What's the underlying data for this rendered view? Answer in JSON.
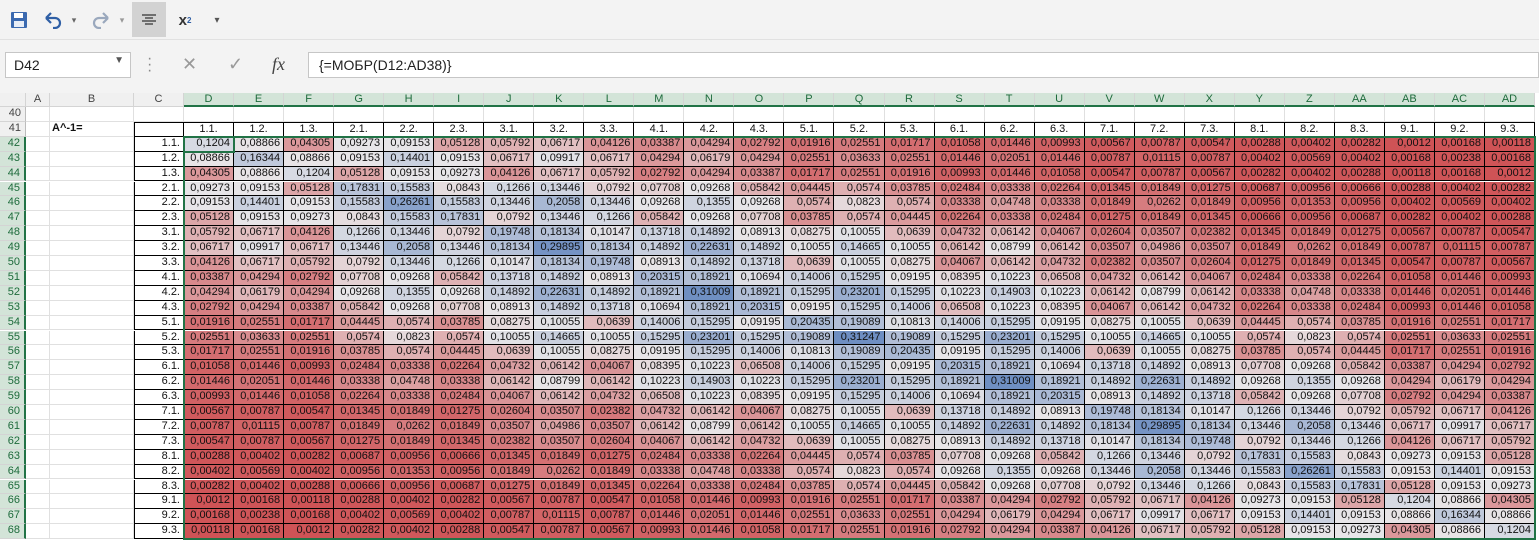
{
  "toolbar": {
    "items": [
      "save-icon",
      "undo-icon",
      "undo-dropdown-icon",
      "redo-icon",
      "redo-dropdown-icon",
      "align-center-icon",
      "subscript-icon",
      "customize-dropdown-icon"
    ],
    "subscript_glyph": "x",
    "subscript_sub": "2"
  },
  "namebox": "D42",
  "formula_icons": {
    "cancel": "✕",
    "enter": "✓",
    "fx": "fx"
  },
  "formula": "{=МОБР(D12:AD38)}",
  "columns": [
    "A",
    "B",
    "C",
    "D",
    "E",
    "F",
    "G",
    "H",
    "I",
    "J",
    "K",
    "L",
    "M",
    "N",
    "O",
    "P",
    "Q",
    "R",
    "S",
    "T",
    "U",
    "V",
    "W",
    "X",
    "Y",
    "Z",
    "AA",
    "AB",
    "AC",
    "AD"
  ],
  "rows": [
    "40",
    "41",
    "42",
    "43",
    "44",
    "45",
    "46",
    "47",
    "48",
    "49",
    "50",
    "51",
    "52",
    "53",
    "54",
    "55",
    "56",
    "57",
    "58",
    "59",
    "60",
    "61",
    "62",
    "63",
    "64",
    "65",
    "66",
    "67",
    "68"
  ],
  "matrix_label": "A^-1=",
  "labels": [
    "1.1.",
    "1.2.",
    "1.3.",
    "2.1.",
    "2.2.",
    "2.3.",
    "3.1.",
    "3.2.",
    "3.3.",
    "4.1.",
    "4.2.",
    "4.3.",
    "5.1.",
    "5.2.",
    "5.3.",
    "6.1.",
    "6.2.",
    "6.3.",
    "7.1.",
    "7.2.",
    "7.3.",
    "8.1.",
    "8.2.",
    "8.3.",
    "9.1.",
    "9.2.",
    "9.3."
  ],
  "heat_colors": {
    "low": "#cf5356",
    "mid": "#e8e6e8",
    "high": "#6e8ec2"
  },
  "matrix": [
    [
      "0,1204",
      "0,08866",
      "0,04305",
      "0,09273",
      "0,09153",
      "0,05128",
      "0,05792",
      "0,06717",
      "0,04126",
      "0,03387",
      "0,04294",
      "0,02792",
      "0,01916",
      "0,02551",
      "0,01717",
      "0,01058",
      "0,01446",
      "0,00993",
      "0,00567",
      "0,00787",
      "0,00547",
      "0,00288",
      "0,00402",
      "0,00282",
      "0,0012",
      "0,00168",
      "0,00118"
    ],
    [
      "0,08866",
      "0,16344",
      "0,08866",
      "0,09153",
      "0,14401",
      "0,09153",
      "0,06717",
      "0,09917",
      "0,06717",
      "0,04294",
      "0,06179",
      "0,04294",
      "0,02551",
      "0,03633",
      "0,02551",
      "0,01446",
      "0,02051",
      "0,01446",
      "0,00787",
      "0,01115",
      "0,00787",
      "0,00402",
      "0,00569",
      "0,00402",
      "0,00168",
      "0,00238",
      "0,00168"
    ],
    [
      "0,04305",
      "0,08866",
      "0,1204",
      "0,05128",
      "0,09153",
      "0,09273",
      "0,04126",
      "0,06717",
      "0,05792",
      "0,02792",
      "0,04294",
      "0,03387",
      "0,01717",
      "0,02551",
      "0,01916",
      "0,00993",
      "0,01446",
      "0,01058",
      "0,00547",
      "0,00787",
      "0,00567",
      "0,00282",
      "0,00402",
      "0,00288",
      "0,00118",
      "0,00168",
      "0,0012"
    ],
    [
      "0,09273",
      "0,09153",
      "0,05128",
      "0,17831",
      "0,15583",
      "0,0843",
      "0,1266",
      "0,13446",
      "0,0792",
      "0,07708",
      "0,09268",
      "0,05842",
      "0,04445",
      "0,0574",
      "0,03785",
      "0,02484",
      "0,03338",
      "0,02264",
      "0,01345",
      "0,01849",
      "0,01275",
      "0,00687",
      "0,00956",
      "0,00666",
      "0,00288",
      "0,00402",
      "0,00282"
    ],
    [
      "0,09153",
      "0,14401",
      "0,09153",
      "0,15583",
      "0,26261",
      "0,15583",
      "0,13446",
      "0,2058",
      "0,13446",
      "0,09268",
      "0,1355",
      "0,09268",
      "0,0574",
      "0,0823",
      "0,0574",
      "0,03338",
      "0,04748",
      "0,03338",
      "0,01849",
      "0,0262",
      "0,01849",
      "0,00956",
      "0,01353",
      "0,00956",
      "0,00402",
      "0,00569",
      "0,00402"
    ],
    [
      "0,05128",
      "0,09153",
      "0,09273",
      "0,0843",
      "0,15583",
      "0,17831",
      "0,0792",
      "0,13446",
      "0,1266",
      "0,05842",
      "0,09268",
      "0,07708",
      "0,03785",
      "0,0574",
      "0,04445",
      "0,02264",
      "0,03338",
      "0,02484",
      "0,01275",
      "0,01849",
      "0,01345",
      "0,00666",
      "0,00956",
      "0,00687",
      "0,00282",
      "0,00402",
      "0,00288"
    ],
    [
      "0,05792",
      "0,06717",
      "0,04126",
      "0,1266",
      "0,13446",
      "0,0792",
      "0,19748",
      "0,18134",
      "0,10147",
      "0,13718",
      "0,14892",
      "0,08913",
      "0,08275",
      "0,10055",
      "0,0639",
      "0,04732",
      "0,06142",
      "0,04067",
      "0,02604",
      "0,03507",
      "0,02382",
      "0,01345",
      "0,01849",
      "0,01275",
      "0,00567",
      "0,00787",
      "0,00547"
    ],
    [
      "0,06717",
      "0,09917",
      "0,06717",
      "0,13446",
      "0,2058",
      "0,13446",
      "0,18134",
      "0,29895",
      "0,18134",
      "0,14892",
      "0,22631",
      "0,14892",
      "0,10055",
      "0,14665",
      "0,10055",
      "0,06142",
      "0,08799",
      "0,06142",
      "0,03507",
      "0,04986",
      "0,03507",
      "0,01849",
      "0,0262",
      "0,01849",
      "0,00787",
      "0,01115",
      "0,00787"
    ],
    [
      "0,04126",
      "0,06717",
      "0,05792",
      "0,0792",
      "0,13446",
      "0,1266",
      "0,10147",
      "0,18134",
      "0,19748",
      "0,08913",
      "0,14892",
      "0,13718",
      "0,0639",
      "0,10055",
      "0,08275",
      "0,04067",
      "0,06142",
      "0,04732",
      "0,02382",
      "0,03507",
      "0,02604",
      "0,01275",
      "0,01849",
      "0,01345",
      "0,00547",
      "0,00787",
      "0,00567"
    ],
    [
      "0,03387",
      "0,04294",
      "0,02792",
      "0,07708",
      "0,09268",
      "0,05842",
      "0,13718",
      "0,14892",
      "0,08913",
      "0,20315",
      "0,18921",
      "0,10694",
      "0,14006",
      "0,15295",
      "0,09195",
      "0,08395",
      "0,10223",
      "0,06508",
      "0,04732",
      "0,06142",
      "0,04067",
      "0,02484",
      "0,03338",
      "0,02264",
      "0,01058",
      "0,01446",
      "0,00993"
    ],
    [
      "0,04294",
      "0,06179",
      "0,04294",
      "0,09268",
      "0,1355",
      "0,09268",
      "0,14892",
      "0,22631",
      "0,14892",
      "0,18921",
      "0,31009",
      "0,18921",
      "0,15295",
      "0,23201",
      "0,15295",
      "0,10223",
      "0,14903",
      "0,10223",
      "0,06142",
      "0,08799",
      "0,06142",
      "0,03338",
      "0,04748",
      "0,03338",
      "0,01446",
      "0,02051",
      "0,01446"
    ],
    [
      "0,02792",
      "0,04294",
      "0,03387",
      "0,05842",
      "0,09268",
      "0,07708",
      "0,08913",
      "0,14892",
      "0,13718",
      "0,10694",
      "0,18921",
      "0,20315",
      "0,09195",
      "0,15295",
      "0,14006",
      "0,06508",
      "0,10223",
      "0,08395",
      "0,04067",
      "0,06142",
      "0,04732",
      "0,02264",
      "0,03338",
      "0,02484",
      "0,00993",
      "0,01446",
      "0,01058"
    ],
    [
      "0,01916",
      "0,02551",
      "0,01717",
      "0,04445",
      "0,0574",
      "0,03785",
      "0,08275",
      "0,10055",
      "0,0639",
      "0,14006",
      "0,15295",
      "0,09195",
      "0,20435",
      "0,19089",
      "0,10813",
      "0,14006",
      "0,15295",
      "0,09195",
      "0,08275",
      "0,10055",
      "0,0639",
      "0,04445",
      "0,0574",
      "0,03785",
      "0,01916",
      "0,02551",
      "0,01717"
    ],
    [
      "0,02551",
      "0,03633",
      "0,02551",
      "0,0574",
      "0,0823",
      "0,0574",
      "0,10055",
      "0,14665",
      "0,10055",
      "0,15295",
      "0,23201",
      "0,15295",
      "0,19089",
      "0,31247",
      "0,19089",
      "0,15295",
      "0,23201",
      "0,15295",
      "0,10055",
      "0,14665",
      "0,10055",
      "0,0574",
      "0,0823",
      "0,0574",
      "0,02551",
      "0,03633",
      "0,02551"
    ],
    [
      "0,01717",
      "0,02551",
      "0,01916",
      "0,03785",
      "0,0574",
      "0,04445",
      "0,0639",
      "0,10055",
      "0,08275",
      "0,09195",
      "0,15295",
      "0,14006",
      "0,10813",
      "0,19089",
      "0,20435",
      "0,09195",
      "0,15295",
      "0,14006",
      "0,0639",
      "0,10055",
      "0,08275",
      "0,03785",
      "0,0574",
      "0,04445",
      "0,01717",
      "0,02551",
      "0,01916"
    ],
    [
      "0,01058",
      "0,01446",
      "0,00993",
      "0,02484",
      "0,03338",
      "0,02264",
      "0,04732",
      "0,06142",
      "0,04067",
      "0,08395",
      "0,10223",
      "0,06508",
      "0,14006",
      "0,15295",
      "0,09195",
      "0,20315",
      "0,18921",
      "0,10694",
      "0,13718",
      "0,14892",
      "0,08913",
      "0,07708",
      "0,09268",
      "0,05842",
      "0,03387",
      "0,04294",
      "0,02792"
    ],
    [
      "0,01446",
      "0,02051",
      "0,01446",
      "0,03338",
      "0,04748",
      "0,03338",
      "0,06142",
      "0,08799",
      "0,06142",
      "0,10223",
      "0,14903",
      "0,10223",
      "0,15295",
      "0,23201",
      "0,15295",
      "0,18921",
      "0,31009",
      "0,18921",
      "0,14892",
      "0,22631",
      "0,14892",
      "0,09268",
      "0,1355",
      "0,09268",
      "0,04294",
      "0,06179",
      "0,04294"
    ],
    [
      "0,00993",
      "0,01446",
      "0,01058",
      "0,02264",
      "0,03338",
      "0,02484",
      "0,04067",
      "0,06142",
      "0,04732",
      "0,06508",
      "0,10223",
      "0,08395",
      "0,09195",
      "0,15295",
      "0,14006",
      "0,10694",
      "0,18921",
      "0,20315",
      "0,08913",
      "0,14892",
      "0,13718",
      "0,05842",
      "0,09268",
      "0,07708",
      "0,02792",
      "0,04294",
      "0,03387"
    ],
    [
      "0,00567",
      "0,00787",
      "0,00547",
      "0,01345",
      "0,01849",
      "0,01275",
      "0,02604",
      "0,03507",
      "0,02382",
      "0,04732",
      "0,06142",
      "0,04067",
      "0,08275",
      "0,10055",
      "0,0639",
      "0,13718",
      "0,14892",
      "0,08913",
      "0,19748",
      "0,18134",
      "0,10147",
      "0,1266",
      "0,13446",
      "0,0792",
      "0,05792",
      "0,06717",
      "0,04126"
    ],
    [
      "0,00787",
      "0,01115",
      "0,00787",
      "0,01849",
      "0,0262",
      "0,01849",
      "0,03507",
      "0,04986",
      "0,03507",
      "0,06142",
      "0,08799",
      "0,06142",
      "0,10055",
      "0,14665",
      "0,10055",
      "0,14892",
      "0,22631",
      "0,14892",
      "0,18134",
      "0,29895",
      "0,18134",
      "0,13446",
      "0,2058",
      "0,13446",
      "0,06717",
      "0,09917",
      "0,06717"
    ],
    [
      "0,00547",
      "0,00787",
      "0,00567",
      "0,01275",
      "0,01849",
      "0,01345",
      "0,02382",
      "0,03507",
      "0,02604",
      "0,04067",
      "0,06142",
      "0,04732",
      "0,0639",
      "0,10055",
      "0,08275",
      "0,08913",
      "0,14892",
      "0,13718",
      "0,10147",
      "0,18134",
      "0,19748",
      "0,0792",
      "0,13446",
      "0,1266",
      "0,04126",
      "0,06717",
      "0,05792"
    ],
    [
      "0,00288",
      "0,00402",
      "0,00282",
      "0,00687",
      "0,00956",
      "0,00666",
      "0,01345",
      "0,01849",
      "0,01275",
      "0,02484",
      "0,03338",
      "0,02264",
      "0,04445",
      "0,0574",
      "0,03785",
      "0,07708",
      "0,09268",
      "0,05842",
      "0,1266",
      "0,13446",
      "0,0792",
      "0,17831",
      "0,15583",
      "0,0843",
      "0,09273",
      "0,09153",
      "0,05128"
    ],
    [
      "0,00402",
      "0,00569",
      "0,00402",
      "0,00956",
      "0,01353",
      "0,00956",
      "0,01849",
      "0,0262",
      "0,01849",
      "0,03338",
      "0,04748",
      "0,03338",
      "0,0574",
      "0,0823",
      "0,0574",
      "0,09268",
      "0,1355",
      "0,09268",
      "0,13446",
      "0,2058",
      "0,13446",
      "0,15583",
      "0,26261",
      "0,15583",
      "0,09153",
      "0,14401",
      "0,09153"
    ],
    [
      "0,00282",
      "0,00402",
      "0,00288",
      "0,00666",
      "0,00956",
      "0,00687",
      "0,01275",
      "0,01849",
      "0,01345",
      "0,02264",
      "0,03338",
      "0,02484",
      "0,03785",
      "0,0574",
      "0,04445",
      "0,05842",
      "0,09268",
      "0,07708",
      "0,0792",
      "0,13446",
      "0,1266",
      "0,0843",
      "0,15583",
      "0,17831",
      "0,05128",
      "0,09153",
      "0,09273"
    ],
    [
      "0,0012",
      "0,00168",
      "0,00118",
      "0,00288",
      "0,00402",
      "0,00282",
      "0,00567",
      "0,00787",
      "0,00547",
      "0,01058",
      "0,01446",
      "0,00993",
      "0,01916",
      "0,02551",
      "0,01717",
      "0,03387",
      "0,04294",
      "0,02792",
      "0,05792",
      "0,06717",
      "0,04126",
      "0,09273",
      "0,09153",
      "0,05128",
      "0,1204",
      "0,08866",
      "0,04305"
    ],
    [
      "0,00168",
      "0,00238",
      "0,00168",
      "0,00402",
      "0,00569",
      "0,00402",
      "0,00787",
      "0,01115",
      "0,00787",
      "0,01446",
      "0,02051",
      "0,01446",
      "0,02551",
      "0,03633",
      "0,02551",
      "0,04294",
      "0,06179",
      "0,04294",
      "0,06717",
      "0,09917",
      "0,06717",
      "0,09153",
      "0,14401",
      "0,09153",
      "0,08866",
      "0,16344",
      "0,08866"
    ],
    [
      "0,00118",
      "0,00168",
      "0,0012",
      "0,00282",
      "0,00402",
      "0,00288",
      "0,00547",
      "0,00787",
      "0,00567",
      "0,00993",
      "0,01446",
      "0,01058",
      "0,01717",
      "0,02551",
      "0,01916",
      "0,02792",
      "0,04294",
      "0,03387",
      "0,04126",
      "0,06717",
      "0,05792",
      "0,05128",
      "0,09153",
      "0,09273",
      "0,04305",
      "0,08866",
      "0,1204"
    ]
  ]
}
